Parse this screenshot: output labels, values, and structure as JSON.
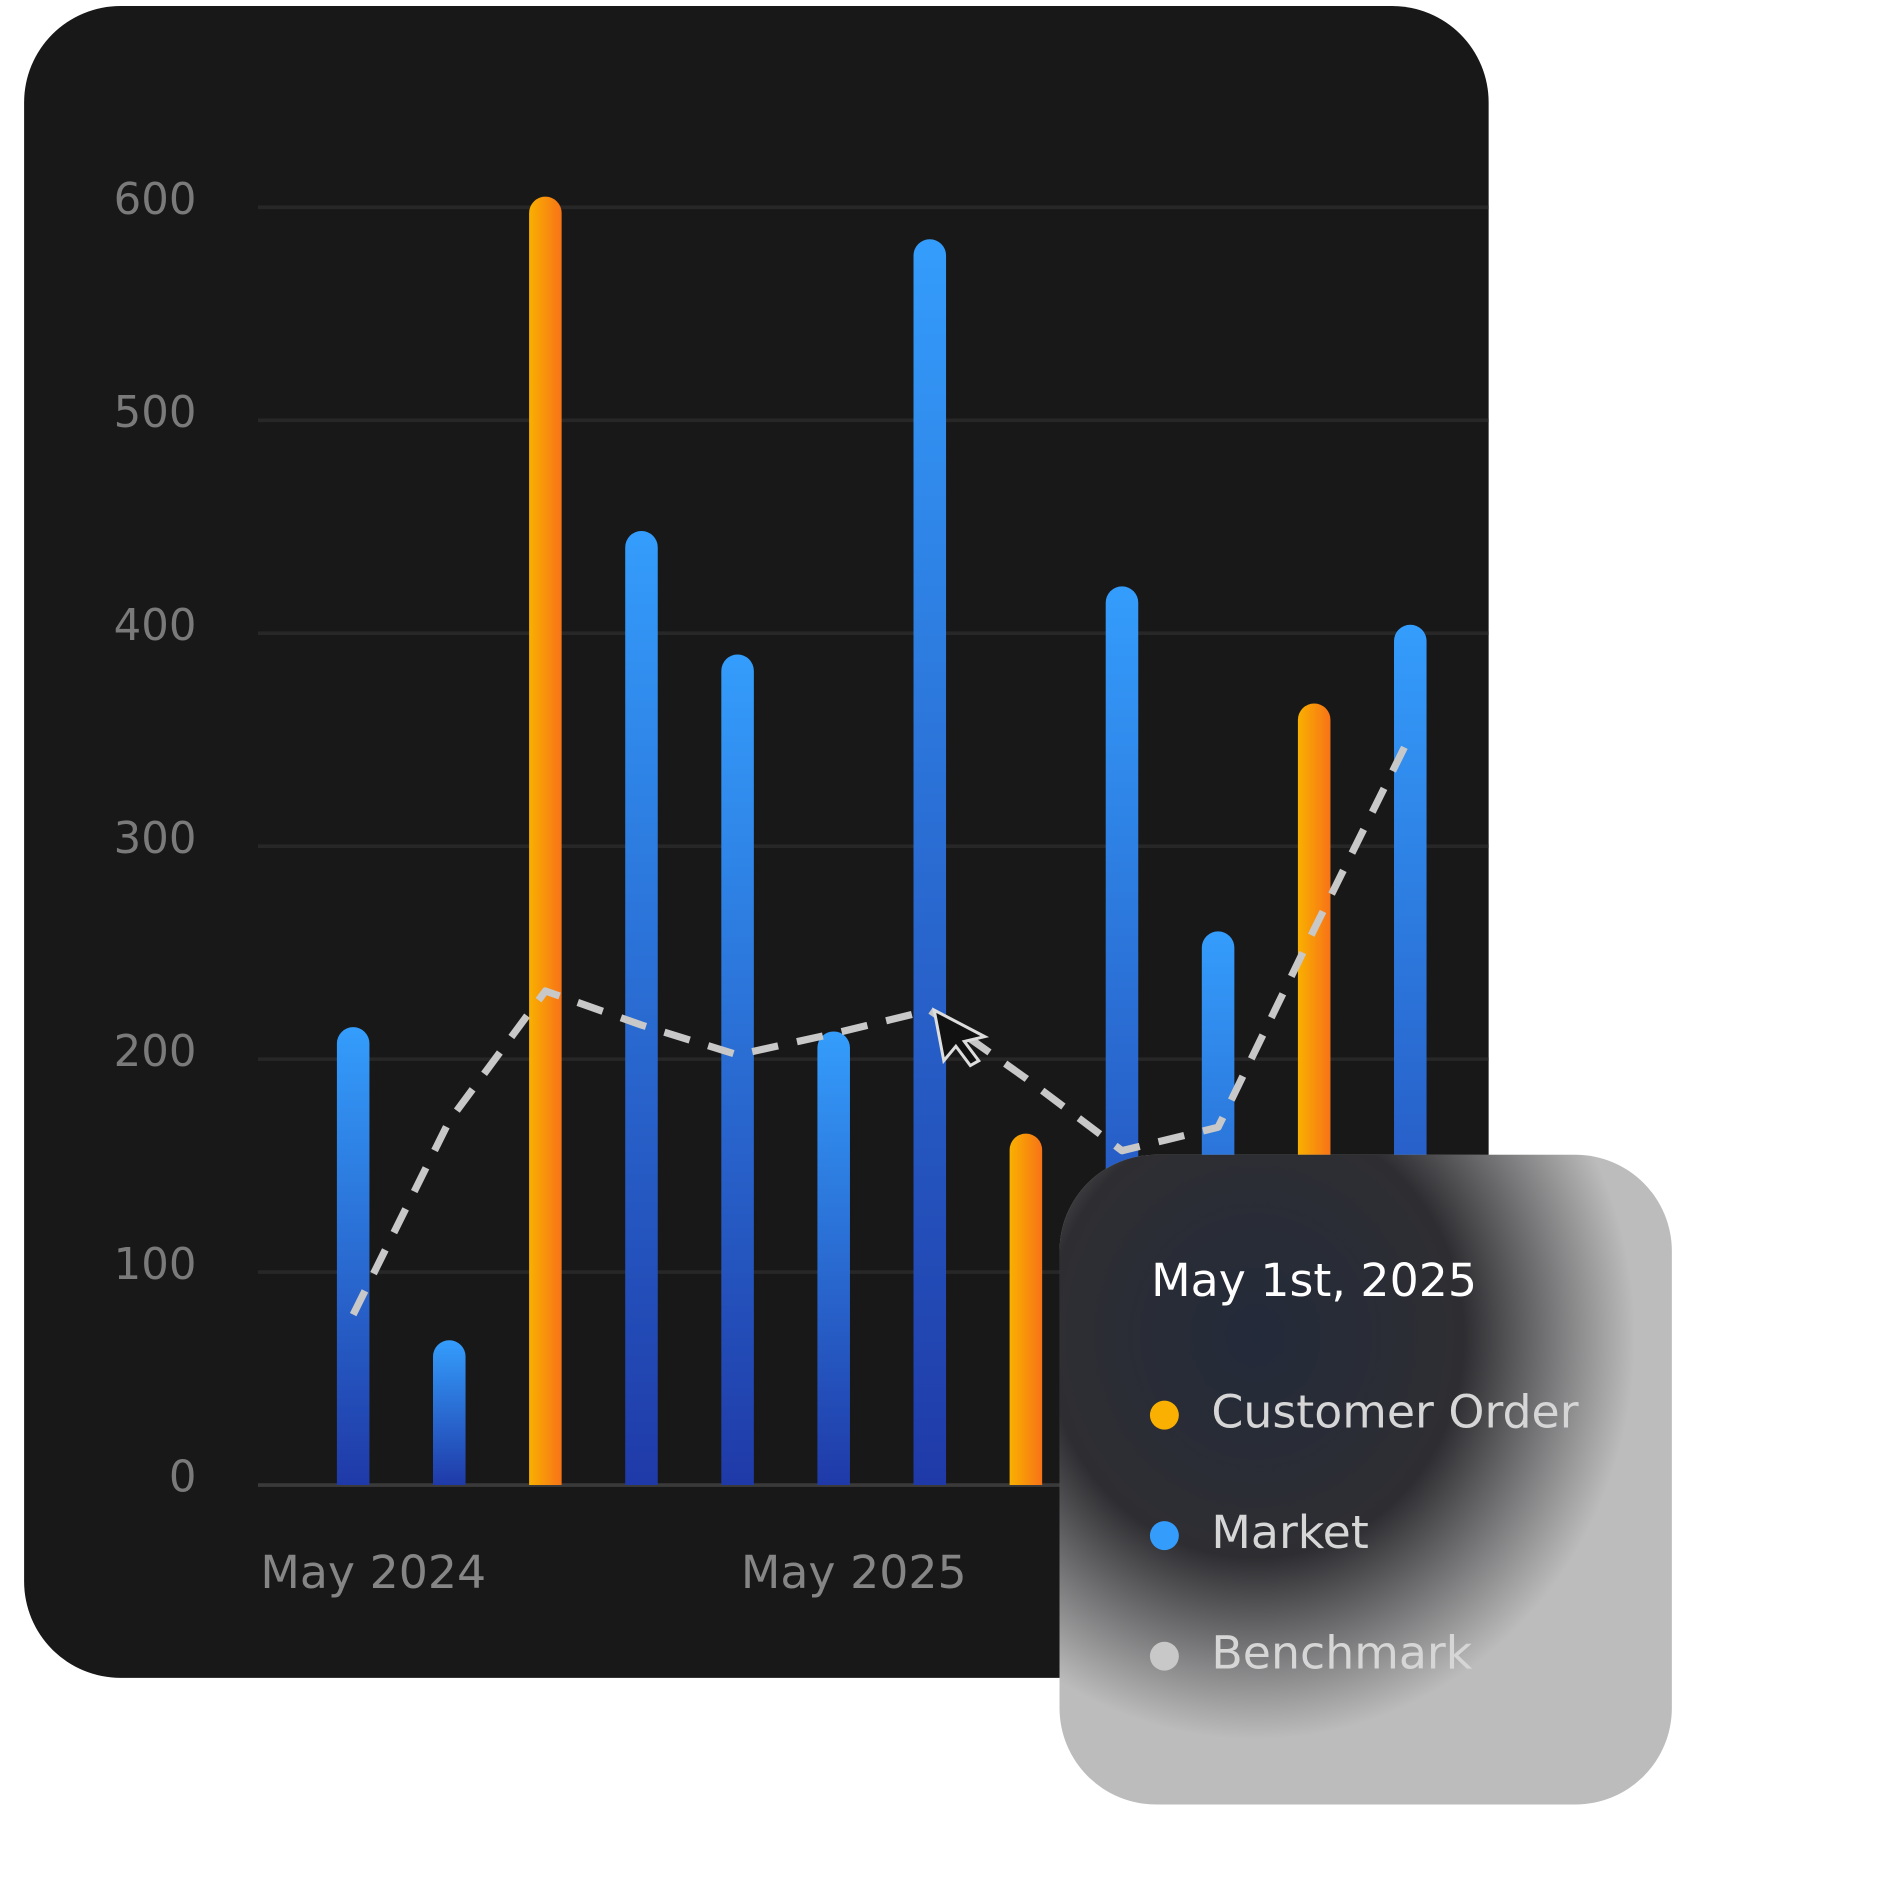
{
  "chart_data": {
    "type": "bar",
    "categories": [
      "May 2024",
      null,
      null,
      null,
      null,
      "May 2025",
      null,
      null,
      null,
      null,
      null,
      null
    ],
    "series": [
      {
        "name": "Customer Order",
        "color": "#f9b000",
        "type": "bar",
        "values": [
          null,
          null,
          605,
          null,
          null,
          null,
          null,
          165,
          null,
          null,
          367,
          null
        ]
      },
      {
        "name": "Market",
        "color": "#349dfc",
        "type": "bar",
        "values": [
          215,
          68,
          null,
          448,
          390,
          213,
          585,
          null,
          422,
          260,
          null,
          404
        ]
      },
      {
        "name": "Benchmark",
        "color": "#c8c8c8",
        "type": "line",
        "values": [
          80,
          171,
          232,
          216,
          202,
          212,
          223,
          191,
          157,
          168,
          261,
          352
        ]
      }
    ],
    "ylim": [
      0,
      600
    ],
    "yticks": [
      0,
      100,
      200,
      300,
      400,
      500,
      600
    ],
    "grid": true,
    "tooltip": {
      "title": "May 1st, 2025"
    }
  }
}
